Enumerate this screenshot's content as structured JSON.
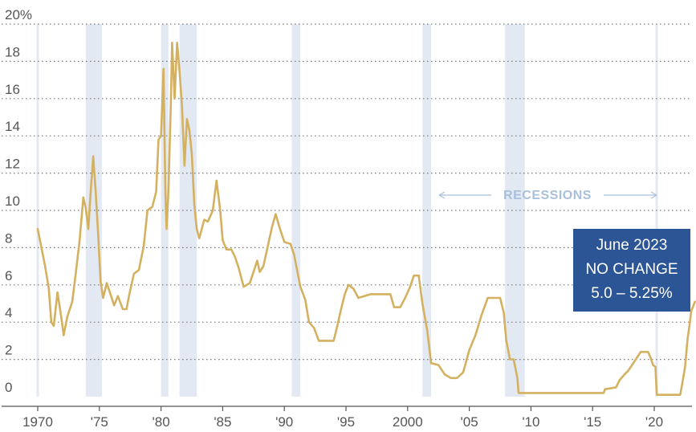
{
  "chart_data": {
    "type": "line",
    "title": "",
    "xlabel": "",
    "ylabel": "",
    "xlim": [
      1970,
      2023.5
    ],
    "ylim": [
      0,
      20
    ],
    "grid": "horizontal dotted",
    "y_ticks": [
      0,
      2,
      4,
      6,
      8,
      10,
      12,
      14,
      16,
      18,
      20
    ],
    "y_tick_labels": [
      "0",
      "2",
      "4",
      "6",
      "8",
      "10",
      "12",
      "14",
      "16",
      "18",
      "20%"
    ],
    "x_ticks": [
      1970,
      1975,
      1980,
      1985,
      1990,
      1995,
      2000,
      2005,
      2010,
      2015,
      2020
    ],
    "x_tick_labels": [
      "1970",
      "'75",
      "'80",
      "'85",
      "'90",
      "'95",
      "2000",
      "'05",
      "'10",
      "'15",
      "'20"
    ],
    "recessions": [
      [
        1969.9,
        1970.1
      ],
      [
        1973.9,
        1975.2
      ],
      [
        1980.0,
        1980.6
      ],
      [
        1981.5,
        1982.9
      ],
      [
        1990.6,
        1991.3
      ],
      [
        2001.2,
        2001.9
      ],
      [
        2007.9,
        2009.5
      ],
      [
        2020.1,
        2020.3
      ]
    ],
    "recession_label": "RECESSIONS",
    "series": [
      {
        "color": "#d4b160",
        "points": [
          [
            1970.0,
            9.0
          ],
          [
            1970.3,
            8.0
          ],
          [
            1970.6,
            7.0
          ],
          [
            1970.9,
            5.8
          ],
          [
            1971.1,
            4.0
          ],
          [
            1971.3,
            3.8
          ],
          [
            1971.6,
            5.6
          ],
          [
            1971.9,
            4.3
          ],
          [
            1972.1,
            3.3
          ],
          [
            1972.4,
            4.3
          ],
          [
            1972.8,
            5.1
          ],
          [
            1973.1,
            6.7
          ],
          [
            1973.4,
            8.4
          ],
          [
            1973.7,
            10.7
          ],
          [
            1973.9,
            10.1
          ],
          [
            1974.1,
            9.0
          ],
          [
            1974.3,
            11.0
          ],
          [
            1974.5,
            12.9
          ],
          [
            1974.7,
            11.0
          ],
          [
            1974.9,
            8.7
          ],
          [
            1975.1,
            6.2
          ],
          [
            1975.3,
            5.3
          ],
          [
            1975.6,
            6.1
          ],
          [
            1975.8,
            5.7
          ],
          [
            1976.2,
            4.9
          ],
          [
            1976.5,
            5.4
          ],
          [
            1976.9,
            4.7
          ],
          [
            1977.2,
            4.7
          ],
          [
            1977.4,
            5.4
          ],
          [
            1977.8,
            6.6
          ],
          [
            1978.2,
            6.8
          ],
          [
            1978.6,
            8.1
          ],
          [
            1978.9,
            10.0
          ],
          [
            1979.3,
            10.2
          ],
          [
            1979.6,
            11.0
          ],
          [
            1979.8,
            13.8
          ],
          [
            1980.0,
            14.0
          ],
          [
            1980.2,
            17.6
          ],
          [
            1980.35,
            11.0
          ],
          [
            1980.45,
            9.0
          ],
          [
            1980.6,
            11.0
          ],
          [
            1980.8,
            15.9
          ],
          [
            1980.9,
            19.0
          ],
          [
            1981.1,
            16.0
          ],
          [
            1981.3,
            19.0
          ],
          [
            1981.5,
            17.5
          ],
          [
            1981.7,
            15.6
          ],
          [
            1981.9,
            12.4
          ],
          [
            1982.1,
            14.9
          ],
          [
            1982.3,
            14.3
          ],
          [
            1982.5,
            13.0
          ],
          [
            1982.7,
            10.3
          ],
          [
            1982.9,
            9.0
          ],
          [
            1983.1,
            8.5
          ],
          [
            1983.5,
            9.5
          ],
          [
            1983.8,
            9.4
          ],
          [
            1984.2,
            10.0
          ],
          [
            1984.5,
            11.6
          ],
          [
            1984.8,
            10.0
          ],
          [
            1985.0,
            8.4
          ],
          [
            1985.3,
            7.9
          ],
          [
            1985.7,
            7.9
          ],
          [
            1986.0,
            7.5
          ],
          [
            1986.3,
            6.9
          ],
          [
            1986.7,
            5.9
          ],
          [
            1987.2,
            6.1
          ],
          [
            1987.5,
            6.7
          ],
          [
            1987.8,
            7.3
          ],
          [
            1988.0,
            6.7
          ],
          [
            1988.3,
            7.0
          ],
          [
            1988.7,
            8.2
          ],
          [
            1989.0,
            9.1
          ],
          [
            1989.3,
            9.8
          ],
          [
            1989.6,
            9.1
          ],
          [
            1990.0,
            8.3
          ],
          [
            1990.5,
            8.2
          ],
          [
            1990.8,
            7.6
          ],
          [
            1991.0,
            6.9
          ],
          [
            1991.3,
            5.9
          ],
          [
            1991.7,
            5.2
          ],
          [
            1992.0,
            4.0
          ],
          [
            1992.4,
            3.7
          ],
          [
            1992.8,
            3.0
          ],
          [
            1993.5,
            3.0
          ],
          [
            1994.0,
            3.0
          ],
          [
            1994.3,
            3.8
          ],
          [
            1994.6,
            4.7
          ],
          [
            1994.9,
            5.5
          ],
          [
            1995.2,
            6.0
          ],
          [
            1995.6,
            5.8
          ],
          [
            1996.0,
            5.3
          ],
          [
            1997.0,
            5.5
          ],
          [
            1998.0,
            5.5
          ],
          [
            1998.6,
            5.5
          ],
          [
            1998.9,
            4.8
          ],
          [
            1999.4,
            4.8
          ],
          [
            1999.8,
            5.3
          ],
          [
            2000.2,
            5.9
          ],
          [
            2000.5,
            6.5
          ],
          [
            2000.9,
            6.5
          ],
          [
            2001.2,
            5.0
          ],
          [
            2001.6,
            3.5
          ],
          [
            2001.9,
            1.8
          ],
          [
            2002.5,
            1.7
          ],
          [
            2003.0,
            1.2
          ],
          [
            2003.5,
            1.0
          ],
          [
            2004.0,
            1.0
          ],
          [
            2004.5,
            1.3
          ],
          [
            2005.0,
            2.5
          ],
          [
            2005.5,
            3.3
          ],
          [
            2006.0,
            4.4
          ],
          [
            2006.5,
            5.3
          ],
          [
            2007.5,
            5.3
          ],
          [
            2007.8,
            4.5
          ],
          [
            2008.0,
            3.0
          ],
          [
            2008.3,
            2.0
          ],
          [
            2008.6,
            2.0
          ],
          [
            2008.9,
            1.0
          ],
          [
            2009.0,
            0.2
          ],
          [
            2015.9,
            0.2
          ],
          [
            2016.0,
            0.4
          ],
          [
            2016.9,
            0.5
          ],
          [
            2017.2,
            0.9
          ],
          [
            2017.6,
            1.2
          ],
          [
            2017.9,
            1.4
          ],
          [
            2018.3,
            1.8
          ],
          [
            2018.7,
            2.2
          ],
          [
            2018.9,
            2.4
          ],
          [
            2019.5,
            2.4
          ],
          [
            2019.7,
            2.1
          ],
          [
            2019.9,
            1.7
          ],
          [
            2020.1,
            1.6
          ],
          [
            2020.2,
            0.1
          ],
          [
            2022.1,
            0.1
          ],
          [
            2022.3,
            0.8
          ],
          [
            2022.5,
            1.6
          ],
          [
            2022.7,
            3.1
          ],
          [
            2022.85,
            3.8
          ],
          [
            2023.0,
            4.6
          ],
          [
            2023.3,
            5.1
          ]
        ]
      }
    ],
    "annotation": {
      "lines": [
        "June 2023",
        "NO CHANGE",
        "5.0 – 5.25%"
      ],
      "box_color": "#2c5596",
      "text_color": "#ffffff"
    },
    "colors": {
      "line": "#d4b160",
      "recession": "#e3e9f3",
      "grid": "#777777",
      "axis": "#555555"
    }
  }
}
